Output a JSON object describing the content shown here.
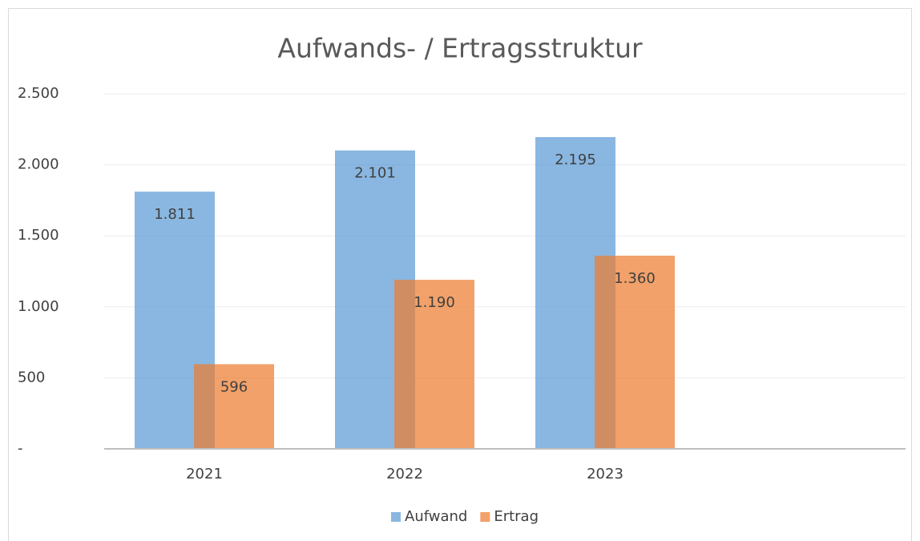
{
  "chart_data": {
    "type": "bar",
    "title": "Aufwands- / Ertragsstruktur",
    "categories": [
      "2021",
      "2022",
      "2023",
      null
    ],
    "series": [
      {
        "name": "Aufwand",
        "color": "#5b9bd5",
        "values": [
          1811,
          2101,
          2195,
          null
        ],
        "value_labels": [
          "1.811",
          "2.101",
          "2.195",
          null
        ]
      },
      {
        "name": "Ertrag",
        "color": "#ed7d31",
        "values": [
          596,
          1190,
          1360,
          null
        ],
        "value_labels": [
          "596",
          "1.190",
          "1.360",
          null
        ]
      }
    ],
    "ylim": [
      0,
      2500
    ],
    "yticks": [
      {
        "value": 0,
        "label": "-"
      },
      500,
      {
        "value": 1000,
        "label": "1.000"
      },
      {
        "value": 1500,
        "label": "1.500"
      },
      {
        "value": 2000,
        "label": "2.000"
      },
      {
        "value": 2500,
        "label": "2.500"
      }
    ],
    "grid": true,
    "legend": "bottom"
  }
}
